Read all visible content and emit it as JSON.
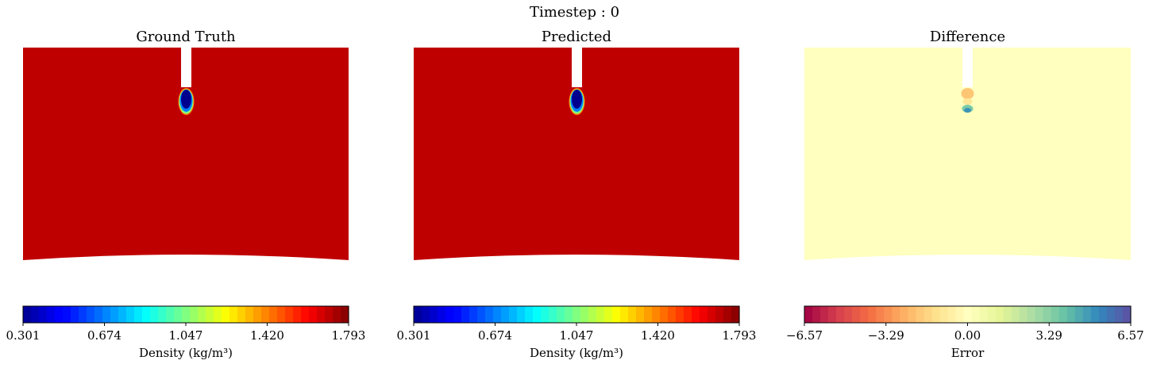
{
  "figure": {
    "suptitle": "Timestep : 0"
  },
  "chart_data": [
    {
      "type": "heatmap",
      "title": "Ground Truth",
      "field": "density",
      "background_value": 1.7,
      "jet_region": {
        "stem_column": "white (no data)",
        "plume_core_value": 0.301,
        "plume_edge_values": [
          0.674,
          1.047,
          1.42
        ]
      },
      "colormap": "jet",
      "colorbar": {
        "label": "Density (kg/m³)",
        "range": [
          0.301,
          1.793
        ],
        "ticks": [
          "0.301",
          "0.674",
          "1.047",
          "1.420",
          "1.793"
        ]
      }
    },
    {
      "type": "heatmap",
      "title": "Predicted",
      "field": "density",
      "background_value": 1.7,
      "jet_region": {
        "stem_column": "white (no data)",
        "plume_core_value": 0.301,
        "plume_edge_values": [
          0.674,
          1.047,
          1.42
        ]
      },
      "colormap": "jet",
      "colorbar": {
        "label": "Density (kg/m³)",
        "range": [
          0.301,
          1.793
        ],
        "ticks": [
          "0.301",
          "0.674",
          "1.047",
          "1.420",
          "1.793"
        ]
      }
    },
    {
      "type": "heatmap",
      "title": "Difference",
      "field": "error",
      "background_value": 0.0,
      "jet_region": {
        "stem_column": "white (no data)",
        "upper_values": [
          -2.0,
          -1.0
        ],
        "lower_values": [
          3.5,
          5.0
        ]
      },
      "colormap": "Spectral",
      "colorbar": {
        "label": "Error",
        "range": [
          -6.57,
          6.57
        ],
        "ticks": [
          "−6.57",
          "−3.29",
          "0.00",
          "3.29",
          "6.57"
        ]
      }
    }
  ]
}
